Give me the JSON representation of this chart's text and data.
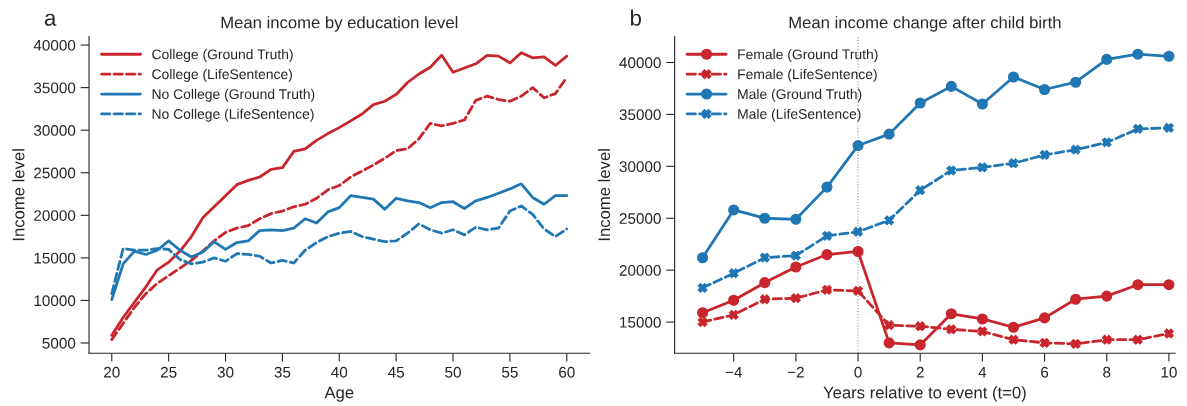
{
  "chart_data": [
    {
      "type": "line",
      "title": "Mean income by education level",
      "xlabel": "Age",
      "ylabel": "Income level",
      "annotations": [
        "a"
      ],
      "legend": "top left",
      "grid": false,
      "x": [
        20,
        21,
        22,
        23,
        24,
        25,
        26,
        27,
        28,
        29,
        30,
        31,
        32,
        33,
        34,
        35,
        36,
        37,
        38,
        39,
        40,
        41,
        42,
        43,
        44,
        45,
        46,
        47,
        48,
        49,
        50,
        51,
        52,
        53,
        54,
        55,
        56,
        57,
        58,
        59,
        60
      ],
      "xlim": [
        18,
        62
      ],
      "ylim": [
        3800,
        41000
      ],
      "xticks": [
        20,
        25,
        30,
        35,
        40,
        45,
        50,
        55,
        60
      ],
      "yticks": [
        5000,
        10000,
        15000,
        20000,
        25000,
        30000,
        35000,
        40000
      ],
      "series": [
        {
          "name": "College (Ground Truth)",
          "color": "#c9252c",
          "line_style": "solid",
          "values": [
            5900,
            8000,
            9800,
            11600,
            13600,
            14500,
            15800,
            17500,
            19700,
            21000,
            22300,
            23600,
            24100,
            24500,
            25400,
            25600,
            27500,
            27800,
            28800,
            29600,
            30300,
            31100,
            31900,
            33000,
            33400,
            34200,
            35600,
            36600,
            37400,
            38800,
            36800,
            37300,
            37800,
            38800,
            38700,
            37900,
            39100,
            38500,
            38600,
            37600,
            38700
          ]
        },
        {
          "name": "College (LifeSentence)",
          "color": "#c9252c",
          "line_style": "dashed",
          "values": [
            5400,
            7300,
            9200,
            10800,
            12000,
            12900,
            13800,
            14700,
            15800,
            17000,
            18000,
            18500,
            18800,
            19600,
            20200,
            20500,
            21000,
            21300,
            22000,
            23000,
            23500,
            24500,
            25200,
            25900,
            26700,
            27600,
            27800,
            29000,
            30800,
            30500,
            30800,
            31200,
            33500,
            34000,
            33600,
            33400,
            34000,
            35000,
            33800,
            34300,
            36200
          ]
        },
        {
          "name": "No College (Ground Truth)",
          "color": "#1f77b4",
          "line_style": "solid",
          "values": [
            10100,
            14300,
            15800,
            15400,
            15900,
            17000,
            15900,
            15100,
            15700,
            16900,
            16000,
            16800,
            17000,
            18200,
            18300,
            18200,
            18500,
            19600,
            19100,
            20400,
            20900,
            22300,
            22100,
            21900,
            20700,
            22000,
            21700,
            21500,
            20900,
            21500,
            21600,
            20800,
            21700,
            22100,
            22600,
            23100,
            23700,
            22100,
            21300,
            22300,
            22300
          ]
        },
        {
          "name": "No College (LifeSentence)",
          "color": "#1f77b4",
          "line_style": "dashed",
          "values": [
            10800,
            16100,
            15900,
            15900,
            16100,
            16000,
            14800,
            14300,
            14500,
            15000,
            14600,
            15500,
            15400,
            15200,
            14400,
            14700,
            14400,
            15900,
            16800,
            17500,
            17900,
            18100,
            17500,
            17200,
            16900,
            17000,
            17900,
            19000,
            18300,
            17900,
            18300,
            17700,
            18600,
            18300,
            18500,
            20500,
            21100,
            20100,
            18400,
            17500,
            18400
          ]
        }
      ]
    },
    {
      "type": "line",
      "title": "Mean income change after child birth",
      "xlabel": "Years relative to event (t=0)",
      "ylabel": "Income level",
      "annotations": [
        "b"
      ],
      "legend": "top left",
      "grid": false,
      "x": [
        -5,
        -4,
        -3,
        -2,
        -1,
        0,
        1,
        2,
        3,
        4,
        5,
        6,
        7,
        8,
        9,
        10
      ],
      "xlim": [
        -5.9,
        10.2
      ],
      "ylim": [
        12000,
        42500
      ],
      "xticks": [
        {
          "value": -4,
          "label": "−4"
        },
        {
          "value": -2,
          "label": "−2"
        },
        0,
        2,
        4,
        6,
        8,
        10
      ],
      "yticks": [
        15000,
        20000,
        25000,
        30000,
        35000,
        40000
      ],
      "ref_lines": [
        {
          "axis": "x",
          "value": 0,
          "color": "#999999",
          "line_style": "dotted"
        }
      ],
      "series": [
        {
          "name": "Female (Ground Truth)",
          "color": "#c9252c",
          "line_style": "solid",
          "marker": "circle",
          "values": [
            15900,
            17100,
            18800,
            20300,
            21500,
            21800,
            13000,
            12800,
            15800,
            15300,
            14500,
            15400,
            17200,
            17500,
            18600,
            18600
          ]
        },
        {
          "name": "Female (LifeSentence)",
          "color": "#c9252c",
          "line_style": "dashed",
          "marker": "cross",
          "values": [
            15000,
            15700,
            17200,
            17300,
            18100,
            18000,
            14700,
            14600,
            14300,
            14100,
            13300,
            13000,
            12900,
            13300,
            13300,
            13900
          ]
        },
        {
          "name": "Male (Ground Truth)",
          "color": "#1f77b4",
          "line_style": "solid",
          "marker": "circle",
          "values": [
            21200,
            25800,
            25000,
            24900,
            28000,
            32000,
            33100,
            36100,
            37700,
            36000,
            38600,
            37400,
            38100,
            40300,
            40800,
            40600
          ]
        },
        {
          "name": "Male (LifeSentence)",
          "color": "#1f77b4",
          "line_style": "dashed",
          "marker": "cross",
          "values": [
            18300,
            19700,
            21200,
            21400,
            23300,
            23700,
            24800,
            27700,
            29600,
            29900,
            30300,
            31100,
            31600,
            32300,
            33600,
            33700
          ]
        }
      ]
    }
  ]
}
